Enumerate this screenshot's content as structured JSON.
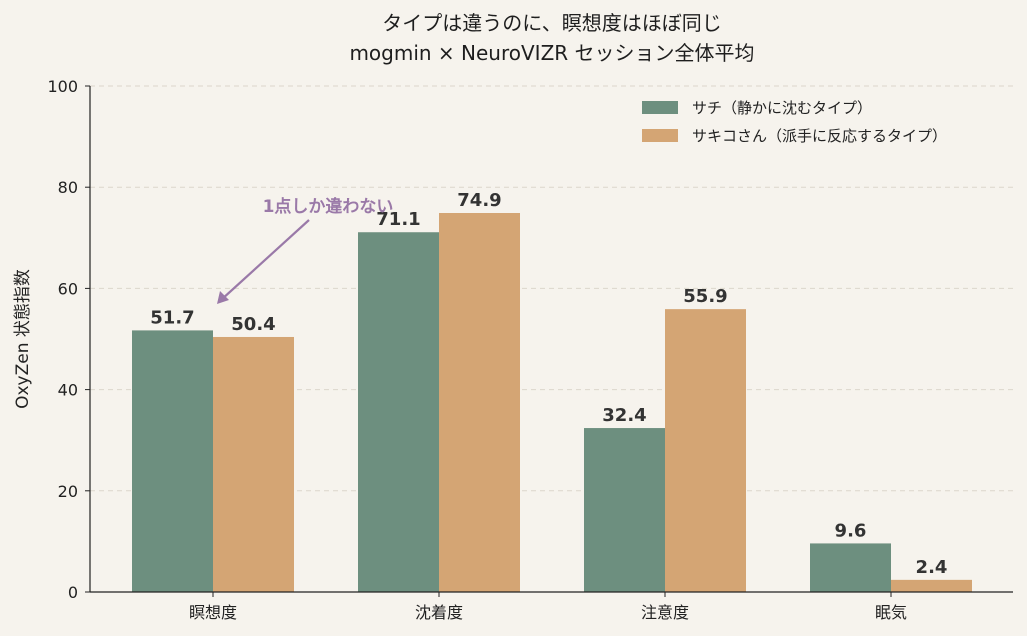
{
  "chart_data": {
    "type": "bar",
    "title": "タイプは違うのに、瞑想度はほぼ同じ",
    "subtitle": "mogmin × NeuroVIZR セッション全体平均",
    "xlabel": "",
    "ylabel": "OxyZen 状態指数",
    "ylim": [
      0,
      100
    ],
    "yticks": [
      0,
      20,
      40,
      60,
      80,
      100
    ],
    "grid": true,
    "legend_position": "top-right",
    "categories": [
      "瞑想度",
      "沈着度",
      "注意度",
      "眠気"
    ],
    "series": [
      {
        "name": "サチ（静かに沈むタイプ）",
        "color": "#6d8f7f",
        "values": [
          51.7,
          71.1,
          32.4,
          9.6
        ]
      },
      {
        "name": "サキコさん（派手に反応するタイプ）",
        "color": "#d4a574",
        "values": [
          50.4,
          74.9,
          55.9,
          2.4
        ]
      }
    ],
    "annotation": {
      "text": "1点しか違わない",
      "target_category": "瞑想度",
      "color": "#9a79a8"
    }
  }
}
